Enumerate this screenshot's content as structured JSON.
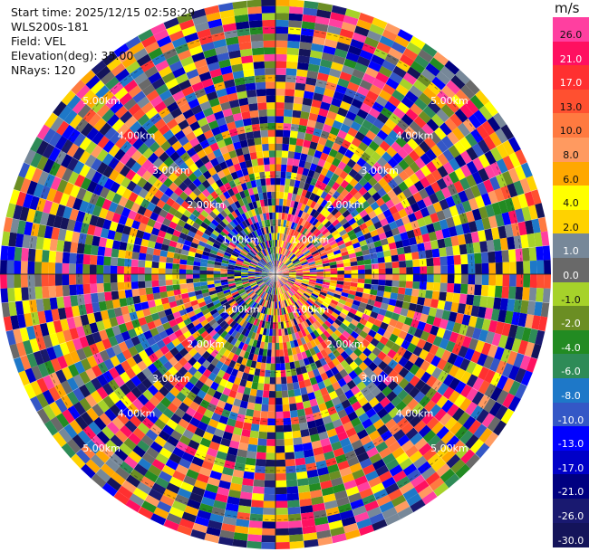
{
  "header": {
    "start_time": "Start time: 2025/12/15 02:58:29",
    "station": "WLS200s-181",
    "field": "Field: VEL",
    "elevation": "Elevation(deg): 35.00",
    "nrays": "NRays: 120"
  },
  "colorbar": {
    "unit": "m/s",
    "levels": [
      {
        "label": "26.0",
        "color": "#ff3fa0"
      },
      {
        "label": "21.0",
        "color": "#ff1060"
      },
      {
        "label": "17.0",
        "color": "#ff3030"
      },
      {
        "label": "13.0",
        "color": "#ff5030"
      },
      {
        "label": "10.0",
        "color": "#ff7a40"
      },
      {
        "label": "8.0",
        "color": "#ff9a60"
      },
      {
        "label": "6.0",
        "color": "#ffa800"
      },
      {
        "label": "4.0",
        "color": "#ffff00"
      },
      {
        "label": "2.0",
        "color": "#ffd200"
      },
      {
        "label": "1.0",
        "color": "#778899"
      },
      {
        "label": "0.0",
        "color": "#696969"
      },
      {
        "label": "-1.0",
        "color": "#a6d22a"
      },
      {
        "label": "-2.0",
        "color": "#6b8e23"
      },
      {
        "label": "-4.0",
        "color": "#228b22"
      },
      {
        "label": "-6.0",
        "color": "#2e8b57"
      },
      {
        "label": "-8.0",
        "color": "#1e78c8"
      },
      {
        "label": "-10.0",
        "color": "#3457c6"
      },
      {
        "label": "-13.0",
        "color": "#0000ff"
      },
      {
        "label": "-17.0",
        "color": "#0000c8"
      },
      {
        "label": "-21.0",
        "color": "#000080"
      },
      {
        "label": "-26.0",
        "color": "#191970"
      },
      {
        "label": "-30.0",
        "color": "#14145a"
      }
    ]
  },
  "chart_data": {
    "type": "heatmap",
    "projection": "polar PPI",
    "field": "VEL",
    "units": "m/s",
    "elevation_deg": 35.0,
    "nrays": 120,
    "range_rings": [
      {
        "label": "1.00km",
        "range_km": 1.0
      },
      {
        "label": "2.00km",
        "range_km": 2.0
      },
      {
        "label": "3.00km",
        "range_km": 3.0
      },
      {
        "label": "4.00km",
        "range_km": 4.0
      },
      {
        "label": "5.00km",
        "range_km": 5.0
      }
    ],
    "max_range_km": 5.6,
    "value_range": [
      -30.0,
      30.0
    ],
    "pattern": "noisy velocity gates over full disc; near-centre gates mostly light/yellow (positive, east) and blue/green (negative, west)"
  }
}
